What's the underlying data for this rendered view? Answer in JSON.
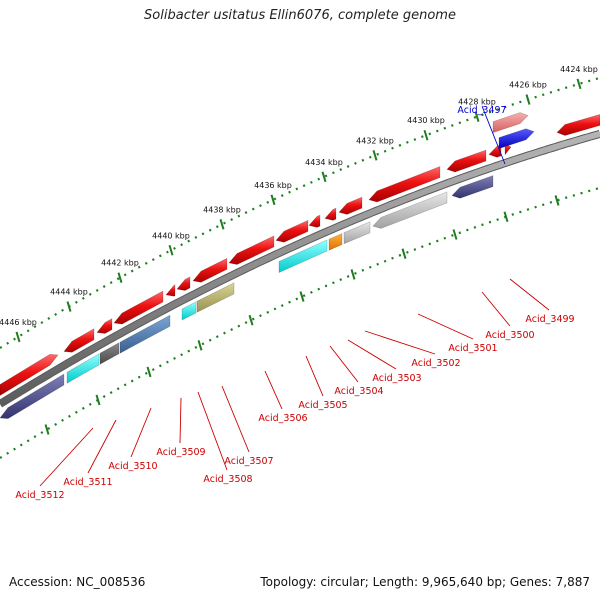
{
  "title": "Solibacter usitatus Ellin6076, complete genome",
  "footer": {
    "accession": "Accession: NC_008536",
    "summary": "Topology: circular; Length: 9,965,640 bp; Genes: 7,887"
  },
  "colors": {
    "cds": "#ee1111",
    "trna": "#0000dd",
    "pseudo": "#e87a7a",
    "backbone": "#7a7a7a",
    "ticks": "#1e7d1e",
    "label_red": "#cc0000",
    "label_blue": "#0000cc"
  },
  "kbp_ticks": [
    {
      "label": "4424 kbp"
    },
    {
      "label": "4426 kbp"
    },
    {
      "label": "4428 kbp"
    },
    {
      "label": "4430 kbp"
    },
    {
      "label": "4432 kbp"
    },
    {
      "label": "4434 kbp"
    },
    {
      "label": "4436 kbp"
    },
    {
      "label": "4438 kbp"
    },
    {
      "label": "4440 kbp"
    },
    {
      "label": "4442 kbp"
    },
    {
      "label": "4444 kbp"
    },
    {
      "label": "4446 kbp"
    }
  ],
  "gene_labels": [
    {
      "text": "Acid_3497",
      "color": "blue"
    },
    {
      "text": "Acid_3499",
      "color": "red"
    },
    {
      "text": "Acid_3500",
      "color": "red"
    },
    {
      "text": "Acid_3501",
      "color": "red"
    },
    {
      "text": "Acid_3502",
      "color": "red"
    },
    {
      "text": "Acid_3503",
      "color": "red"
    },
    {
      "text": "Acid_3504",
      "color": "red"
    },
    {
      "text": "Acid_3505",
      "color": "red"
    },
    {
      "text": "Acid_3506",
      "color": "red"
    },
    {
      "text": "Acid_3507",
      "color": "red"
    },
    {
      "text": "Acid_3508",
      "color": "red"
    },
    {
      "text": "Acid_3509",
      "color": "red"
    },
    {
      "text": "Acid_3510",
      "color": "red"
    },
    {
      "text": "Acid_3511",
      "color": "red"
    },
    {
      "text": "Acid_3512",
      "color": "red"
    }
  ]
}
